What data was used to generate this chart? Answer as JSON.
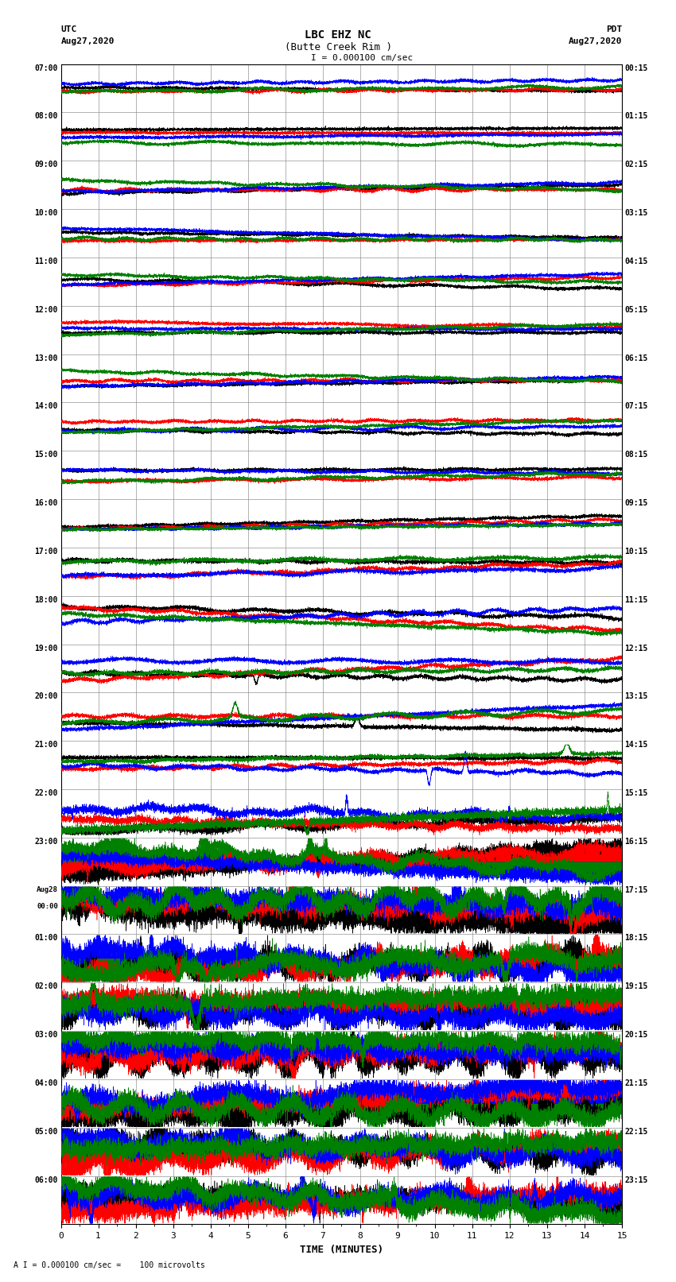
{
  "title_line1": "LBC EHZ NC",
  "title_line2": "(Butte Creek Rim )",
  "scale_text": "I = 0.000100 cm/sec",
  "bottom_scale_text": "A I = 0.000100 cm/sec =    100 microvolts",
  "utc_label": "UTC",
  "utc_date": "Aug27,2020",
  "pdt_label": "PDT",
  "pdt_date": "Aug27,2020",
  "xlabel": "TIME (MINUTES)",
  "xmin": 0,
  "xmax": 15,
  "num_rows": 24,
  "fig_width": 8.5,
  "fig_height": 16.13,
  "left_times": [
    "07:00",
    "08:00",
    "09:00",
    "10:00",
    "11:00",
    "12:00",
    "13:00",
    "14:00",
    "15:00",
    "16:00",
    "17:00",
    "18:00",
    "19:00",
    "20:00",
    "21:00",
    "22:00",
    "23:00",
    "Aug28\n00:00",
    "01:00",
    "02:00",
    "03:00",
    "04:00",
    "05:00",
    "06:00"
  ],
  "right_times": [
    "00:15",
    "01:15",
    "02:15",
    "03:15",
    "04:15",
    "05:15",
    "06:15",
    "07:15",
    "08:15",
    "09:15",
    "10:15",
    "11:15",
    "12:15",
    "13:15",
    "14:15",
    "15:15",
    "16:15",
    "17:15",
    "18:15",
    "19:15",
    "20:15",
    "21:15",
    "22:15",
    "23:15"
  ],
  "colors": [
    "black",
    "red",
    "blue",
    "green"
  ],
  "bg_color": "white",
  "seed": 42
}
